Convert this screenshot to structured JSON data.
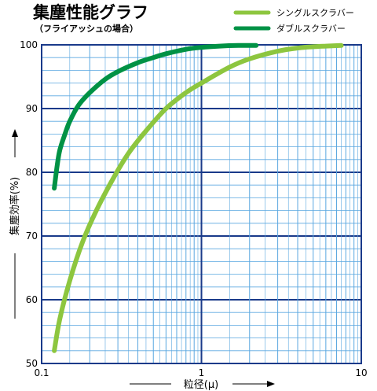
{
  "chart_data": {
    "type": "line",
    "title": "集塵性能グラフ",
    "subtitle": "（フライアッシュの場合）",
    "xlabel": "粒径(μ)",
    "ylabel": "集塵効率(%)",
    "xscale": "log",
    "xlim": [
      0.1,
      10
    ],
    "ylim": [
      50,
      100
    ],
    "x_ticks": [
      "0.1",
      "1",
      "10"
    ],
    "y_ticks": [
      "50",
      "60",
      "70",
      "80",
      "90",
      "100"
    ],
    "legend_position": "top-right",
    "grid": true,
    "series": [
      {
        "name": "シングルスクラバー",
        "color": "#8dc63f",
        "x": [
          0.12,
          0.13,
          0.15,
          0.18,
          0.22,
          0.28,
          0.35,
          0.45,
          0.6,
          0.8,
          1.0,
          1.5,
          2.0,
          3.0,
          4.0,
          5.0,
          6.0,
          7.5
        ],
        "y": [
          52,
          57,
          63,
          69,
          74,
          79,
          83,
          86.5,
          90,
          92.5,
          94,
          96.5,
          97.8,
          99,
          99.5,
          99.7,
          99.8,
          99.9
        ]
      },
      {
        "name": "ダブルスクラバー",
        "color": "#009245",
        "x": [
          0.12,
          0.125,
          0.13,
          0.14,
          0.15,
          0.17,
          0.2,
          0.25,
          0.3,
          0.4,
          0.5,
          0.6,
          0.8,
          1.0,
          1.3,
          1.7,
          2.2
        ],
        "y": [
          77.5,
          81,
          83.5,
          86,
          88,
          90.5,
          92.5,
          94.6,
          95.8,
          97.2,
          98,
          98.6,
          99.3,
          99.6,
          99.8,
          99.9,
          99.9
        ]
      }
    ]
  }
}
